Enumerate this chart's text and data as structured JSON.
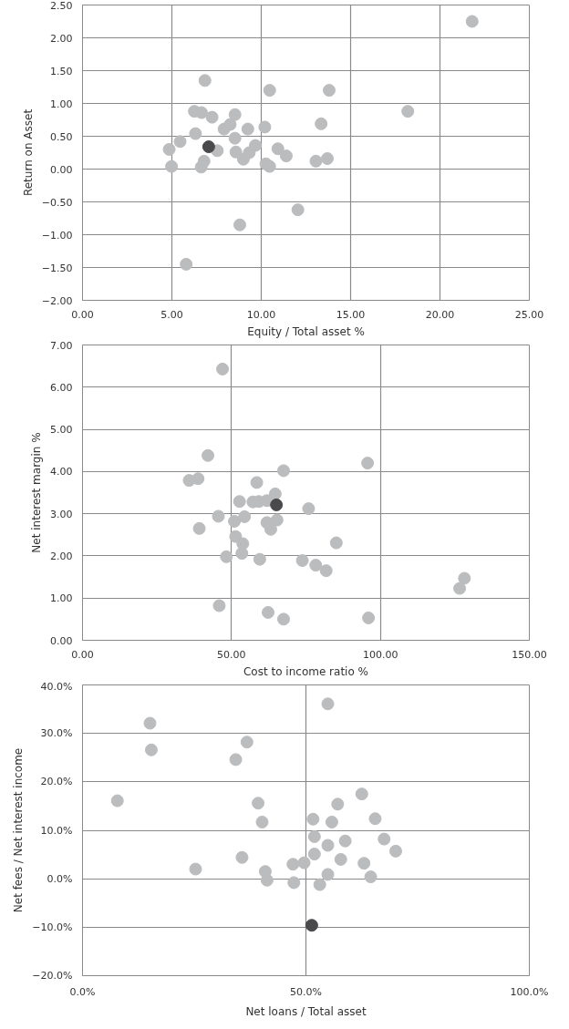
{
  "chart_data": [
    {
      "type": "scatter",
      "xlabel": "Equity / Total asset %",
      "ylabel": "Return on Asset",
      "marker": "circle",
      "grid": true,
      "xlim": [
        0,
        25
      ],
      "ylim": [
        -2,
        2.5
      ],
      "xticks": [
        {
          "value": 0,
          "label": "0.00"
        },
        {
          "value": 5,
          "label": "5.00"
        },
        {
          "value": 10,
          "label": "10.00"
        },
        {
          "value": 15,
          "label": "15.00"
        },
        {
          "value": 20,
          "label": "20.00"
        },
        {
          "value": 25,
          "label": "25.00"
        }
      ],
      "yticks": [
        {
          "value": -2,
          "label": "−2.00"
        },
        {
          "value": -1.5,
          "label": "−1.50"
        },
        {
          "value": -1,
          "label": "−1.00"
        },
        {
          "value": -0.5,
          "label": "−0.50"
        },
        {
          "value": 0,
          "label": "0.00"
        },
        {
          "value": 0.5,
          "label": "0.50"
        },
        {
          "value": 1,
          "label": "1.00"
        },
        {
          "value": 1.5,
          "label": "1.50"
        },
        {
          "value": 2,
          "label": "2.00"
        },
        {
          "value": 2.5,
          "label": "2.50"
        }
      ],
      "series": [
        {
          "color": "#bbbcbe",
          "x": [
            21.8,
            18.2,
            13.8,
            13.35,
            13.7,
            13.06,
            12.05,
            10.47,
            11.4,
            10.93,
            10.47,
            10.26,
            10.2,
            9.67,
            9.25,
            9.33,
            9.0,
            8.8,
            8.53,
            8.53,
            8.58,
            8.26,
            7.92,
            7.54,
            7.25,
            6.85,
            6.66,
            6.8,
            6.64,
            6.26,
            6.32,
            5.46,
            4.85,
            4.98,
            5.8
          ],
          "values": [
            2.25,
            0.88,
            1.2,
            0.69,
            0.16,
            0.12,
            -0.62,
            1.2,
            0.2,
            0.31,
            0.04,
            0.08,
            0.64,
            0.36,
            0.61,
            0.25,
            0.15,
            -0.85,
            0.83,
            0.47,
            0.26,
            0.68,
            0.61,
            0.28,
            0.79,
            1.35,
            0.86,
            0.12,
            0.03,
            0.88,
            0.54,
            0.42,
            0.3,
            0.04,
            -1.45
          ]
        },
        {
          "color": "#4a4a4c",
          "x": [
            7.06
          ],
          "values": [
            0.34
          ]
        }
      ]
    },
    {
      "type": "scatter",
      "xlabel": "Cost to income ratio %",
      "ylabel": "Net interest margin %",
      "marker": "circle",
      "grid": true,
      "xlim": [
        0,
        150
      ],
      "ylim": [
        0,
        7
      ],
      "xticks": [
        {
          "value": 0,
          "label": "0.00"
        },
        {
          "value": 50,
          "label": "50.00"
        },
        {
          "value": 100,
          "label": "100.00"
        },
        {
          "value": 150,
          "label": "150.00"
        }
      ],
      "yticks": [
        {
          "value": 0,
          "label": "0.00"
        },
        {
          "value": 1,
          "label": "1.00"
        },
        {
          "value": 2,
          "label": "2.00"
        },
        {
          "value": 3,
          "label": "3.00"
        },
        {
          "value": 4,
          "label": "4.00"
        },
        {
          "value": 5,
          "label": "5.00"
        },
        {
          "value": 6,
          "label": "6.00"
        },
        {
          "value": 7,
          "label": "7.00"
        }
      ],
      "series": [
        {
          "color": "#bbbcbe",
          "x": [
            47.0,
            42.1,
            38.8,
            35.8,
            95.7,
            96.0,
            128.2,
            126.6,
            85.2,
            81.8,
            78.3,
            73.8,
            75.9,
            67.5,
            64.7,
            65.3,
            63.2,
            61.9,
            61.9,
            59.2,
            58.5,
            57.2,
            59.5,
            67.5,
            62.3,
            54.4,
            52.7,
            51.0,
            51.4,
            53.8,
            53.5,
            48.3,
            45.6,
            45.9,
            39.2
          ],
          "values": [
            6.43,
            4.38,
            3.83,
            3.79,
            4.2,
            0.53,
            1.47,
            1.23,
            2.31,
            1.65,
            1.78,
            1.89,
            3.12,
            4.02,
            3.47,
            2.85,
            2.63,
            2.79,
            3.31,
            3.29,
            3.74,
            3.28,
            1.92,
            0.5,
            0.66,
            2.93,
            3.29,
            2.82,
            2.46,
            2.29,
            2.06,
            1.98,
            2.94,
            0.82,
            2.65
          ]
        },
        {
          "color": "#4a4a4c",
          "x": [
            65.1
          ],
          "values": [
            3.21
          ]
        }
      ]
    },
    {
      "type": "scatter",
      "xlabel": "Net loans / Total asset",
      "ylabel": "Net fees / Net interest income",
      "marker": "circle",
      "grid": true,
      "xlim": [
        0,
        100
      ],
      "ylim": [
        -20,
        40
      ],
      "xticks": [
        {
          "value": 0,
          "label": "0.0%"
        },
        {
          "value": 50,
          "label": "50.0%"
        },
        {
          "value": 100,
          "label": "100.0%"
        }
      ],
      "yticks": [
        {
          "value": -20,
          "label": "−20.0%"
        },
        {
          "value": -10,
          "label": "−10.0%"
        },
        {
          "value": 0,
          "label": "0.0%"
        },
        {
          "value": 10,
          "label": "10.0%"
        },
        {
          "value": 20,
          "label": "20.0%"
        },
        {
          "value": 30,
          "label": "30.0%"
        },
        {
          "value": 40,
          "label": "40.0%"
        }
      ],
      "series": [
        {
          "color": "#bbbcbe",
          "x": [
            54.9,
            36.8,
            34.3,
            15.1,
            15.4,
            7.8,
            62.5,
            65.5,
            57.1,
            55.8,
            51.6,
            39.3,
            40.2,
            67.5,
            70.1,
            58.8,
            57.8,
            54.9,
            51.9,
            51.9,
            49.6,
            47.1,
            63.0,
            64.5,
            54.9,
            53.1,
            47.3,
            40.9,
            41.3,
            35.7,
            25.3
          ],
          "values": [
            36.1,
            28.2,
            24.6,
            32.1,
            26.6,
            16.1,
            17.5,
            12.4,
            15.4,
            11.7,
            12.3,
            15.6,
            11.7,
            8.2,
            5.7,
            7.8,
            4.0,
            6.9,
            8.7,
            5.1,
            3.3,
            3.0,
            3.2,
            0.4,
            0.9,
            -1.2,
            -0.8,
            1.5,
            -0.3,
            4.4,
            2.0
          ]
        },
        {
          "color": "#4a4a4c",
          "x": [
            51.3
          ],
          "values": [
            -9.6
          ]
        }
      ]
    }
  ]
}
